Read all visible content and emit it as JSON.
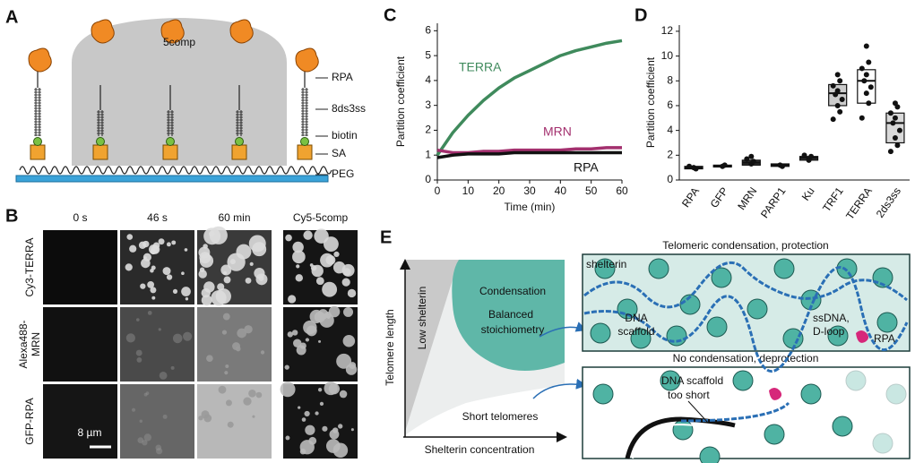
{
  "panel_labels": [
    "A",
    "B",
    "C",
    "D",
    "E"
  ],
  "panel_a": {
    "labels": [
      "5comp",
      "RPA",
      "8ds3ss",
      "biotin",
      "SA",
      "PEG"
    ]
  },
  "panel_b": {
    "columns": [
      "0 s",
      "46 s",
      "60 min",
      "Cy5-5comp"
    ],
    "rows": [
      [
        "Cy3-TERRA"
      ],
      [
        "Alexa488-",
        "MRN"
      ],
      [
        "GFP-RPA"
      ]
    ],
    "scale_bar": "8 µm"
  },
  "chart_data": [
    {
      "type": "line",
      "xlabel": "Time (min)",
      "ylabel": "Partition coefficient",
      "x": [
        0,
        5,
        10,
        15,
        20,
        25,
        30,
        35,
        40,
        45,
        50,
        55,
        60
      ],
      "series": [
        {
          "name": "TERRA",
          "color": "#3f8a5c",
          "values": [
            1.0,
            1.9,
            2.6,
            3.2,
            3.7,
            4.1,
            4.4,
            4.7,
            5.0,
            5.2,
            5.35,
            5.5,
            5.6
          ]
        },
        {
          "name": "MRN",
          "color": "#a3306e",
          "values": [
            1.2,
            1.1,
            1.1,
            1.15,
            1.15,
            1.2,
            1.2,
            1.2,
            1.2,
            1.25,
            1.25,
            1.3,
            1.3
          ]
        },
        {
          "name": "RPA",
          "color": "#111111",
          "values": [
            0.9,
            1.0,
            1.05,
            1.05,
            1.05,
            1.1,
            1.1,
            1.1,
            1.1,
            1.1,
            1.1,
            1.1,
            1.1
          ]
        }
      ],
      "xlim": [
        0,
        60
      ],
      "xticks": [
        0,
        10,
        20,
        30,
        40,
        50,
        60
      ],
      "ylim": [
        0,
        6.3
      ],
      "yticks": [
        0,
        1,
        2,
        3,
        4,
        5,
        6
      ]
    },
    {
      "type": "box",
      "ylabel": "Partition coefficient",
      "categories": [
        "RPA",
        "GFP",
        "MRN",
        "PARP1",
        "Ku",
        "TRF1",
        "TERRA",
        "2ds3ss"
      ],
      "boxes": [
        {
          "q1": 0.9,
          "median": 1.0,
          "q3": 1.1
        },
        {
          "q1": 1.05,
          "median": 1.1,
          "q3": 1.2
        },
        {
          "q1": 1.2,
          "median": 1.4,
          "q3": 1.6
        },
        {
          "q1": 1.1,
          "median": 1.2,
          "q3": 1.3
        },
        {
          "q1": 1.6,
          "median": 1.8,
          "q3": 1.9
        },
        {
          "q1": 6.0,
          "median": 7.0,
          "q3": 7.7
        },
        {
          "q1": 6.2,
          "median": 8.0,
          "q3": 8.9
        },
        {
          "q1": 3.0,
          "median": 4.6,
          "q3": 5.4
        }
      ],
      "box_colors": [
        "#333333",
        "#333333",
        "#333333",
        "#333333",
        "#333333",
        "#cccccc",
        "#ffffff",
        "#d9d9d9"
      ],
      "points": [
        [
          1.0,
          0.9,
          1.1
        ],
        [
          1.1,
          1.2
        ],
        [
          1.3,
          1.5,
          1.7,
          1.9
        ],
        [
          1.2,
          1.1
        ],
        [
          1.7,
          1.9,
          2.0,
          1.6
        ],
        [
          8.5,
          8.0,
          7.6,
          7.2,
          6.9,
          6.5,
          6.0,
          5.5,
          4.9
        ],
        [
          10.8,
          9.5,
          9.0,
          8.5,
          8.0,
          7.5,
          7.0,
          6.2,
          5.0
        ],
        [
          6.2,
          5.9,
          5.4,
          5.0,
          4.6,
          4.0,
          3.4,
          2.8,
          2.3
        ]
      ],
      "ylim": [
        0,
        12.5
      ],
      "yticks": [
        0,
        2,
        4,
        6,
        8,
        10,
        12
      ]
    }
  ],
  "panel_e": {
    "ylabel": "Telomere length",
    "xlabel": "Shelterin concentration",
    "low_shelterin": "Low shelterin",
    "condensation": "Condensation",
    "balanced": [
      "Balanced",
      "stoichiometry"
    ],
    "short": "Short telomeres",
    "top_title": "Telomeric condensation, protection",
    "shelterin": "shelterin",
    "scaffold": [
      "DNA",
      "scaffold"
    ],
    "ssdna": [
      "ssDNA,",
      "D-loop"
    ],
    "rpa": "RPA",
    "bottom_title": "No condensation, deprotection",
    "too_short": [
      "DNA scaffold",
      "too short"
    ]
  }
}
